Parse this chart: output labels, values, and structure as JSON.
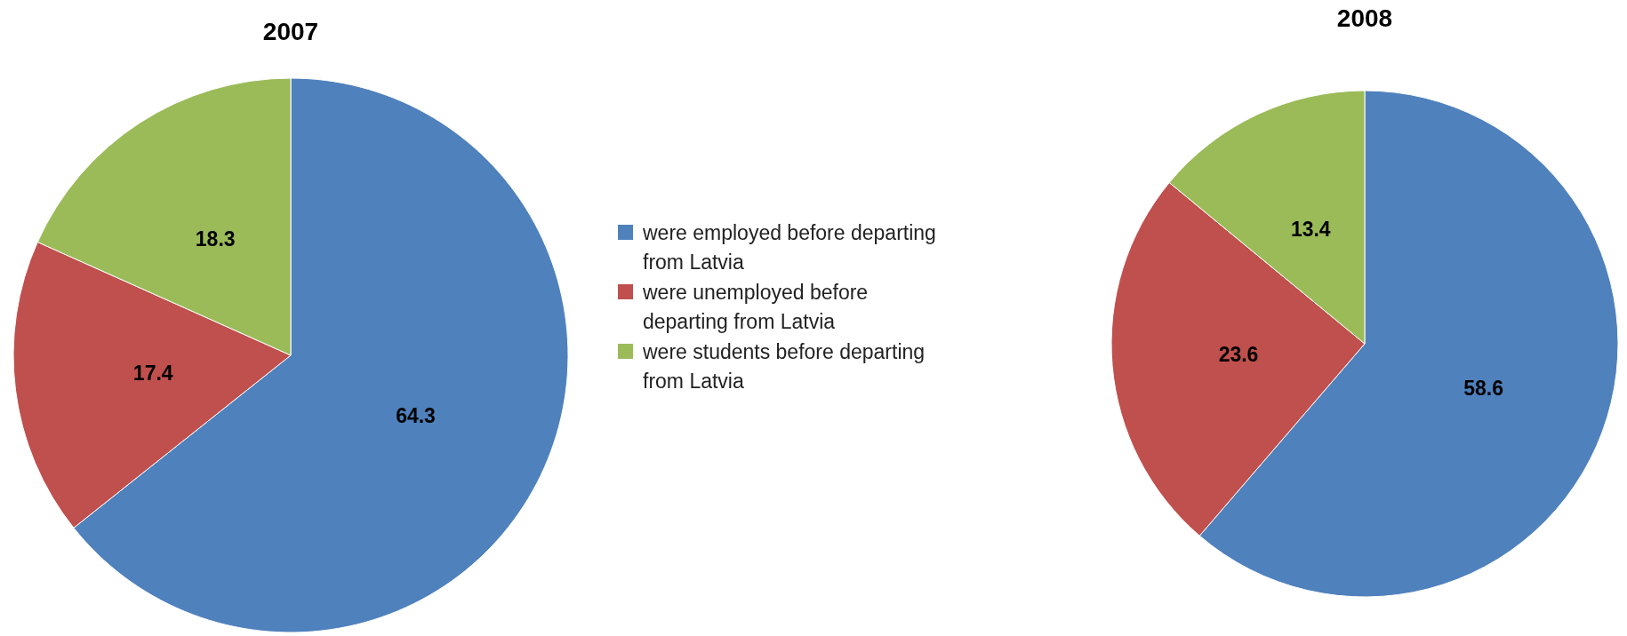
{
  "chart_data": [
    {
      "type": "pie",
      "title": "2007",
      "categories": [
        "were employed before departing from Latvia",
        "were unemployed before departing from Latvia",
        "were students before departing from Latvia"
      ],
      "values": [
        64.3,
        17.4,
        18.3
      ],
      "colors": [
        "#4f81bd",
        "#c0504d",
        "#9bbb59"
      ],
      "data_labels": true,
      "legend": "right"
    },
    {
      "type": "pie",
      "title": "2008",
      "categories": [
        null,
        null,
        null
      ],
      "values": [
        58.6,
        23.6,
        13.4
      ],
      "colors": [
        "#4f81bd",
        "#c0504d",
        "#9bbb59"
      ],
      "data_labels": true
    }
  ]
}
